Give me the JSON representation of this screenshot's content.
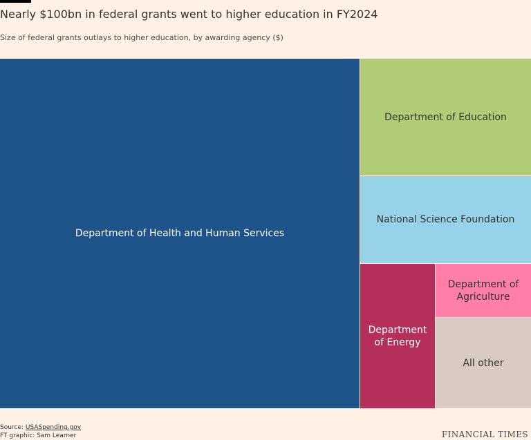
{
  "title": "Nearly $100bn in federal grants went to higher education in FY2024",
  "subtitle": "Size of federal grants outlays to higher education, by awarding agency ($)",
  "footer": {
    "source_prefix": "Source: ",
    "source_link": "USASpending.gov",
    "credit": "FT graphic: Sam Learner",
    "brand": "FINANCIAL TIMES"
  },
  "chart_data": {
    "type": "treemap",
    "title": "Nearly $100bn in federal grants went to higher education in FY2024",
    "subtitle": "Size of federal grants outlays to higher education, by awarding agency ($)",
    "unit": "$",
    "cells": [
      {
        "label": "Department of Health and Human Services",
        "share": 0.678,
        "color": "#1f548a",
        "text_color": "#ffffff"
      },
      {
        "label": "Department of Education",
        "share": 0.108,
        "color": "#b0cc74",
        "text_color": "#33302e"
      },
      {
        "label": "National Science Foundation",
        "share": 0.085,
        "color": "#96d3e8",
        "text_color": "#33302e"
      },
      {
        "label": "Department of Energy",
        "share": 0.057,
        "color": "#b4305a",
        "text_color": "#ffffff"
      },
      {
        "label": "Department of Agriculture",
        "share": 0.025,
        "color": "#ff7fa8",
        "text_color": "#33302e"
      },
      {
        "label": "All other",
        "share": 0.047,
        "color": "#d9cbc1",
        "text_color": "#33302e"
      }
    ]
  }
}
